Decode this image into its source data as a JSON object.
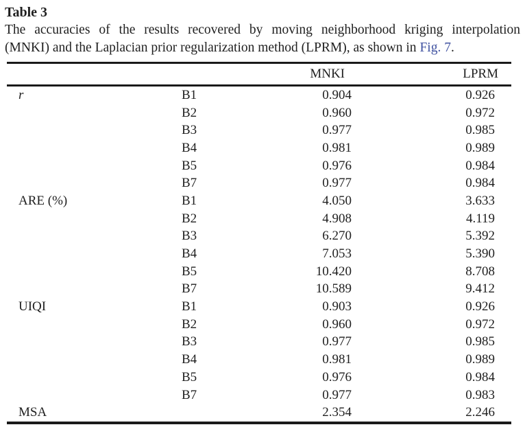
{
  "page": {
    "title": "Table 3",
    "caption": {
      "line1": "The accuracies of the results recovered by moving neighborhood kriging interpolation",
      "line2_before_link": "(MNKI) and the Laplacian prior regularization method (LPRM), as shown in ",
      "link_text": "Fig. 7",
      "line2_after_link": "."
    }
  },
  "colors": {
    "text": "#1f1f1f",
    "link": "#3f51a0",
    "rule": "#1a1a1a",
    "background": "#ffffff"
  },
  "table": {
    "headers": {
      "metric": "",
      "band": "",
      "mnki": "MNKI",
      "lprm": "LPRM"
    },
    "rows": [
      {
        "metric": "r",
        "italic": true,
        "band": "B1",
        "mnki": "0.904",
        "lprm": "0.926"
      },
      {
        "metric": "",
        "band": "B2",
        "mnki": "0.960",
        "lprm": "0.972"
      },
      {
        "metric": "",
        "band": "B3",
        "mnki": "0.977",
        "lprm": "0.985"
      },
      {
        "metric": "",
        "band": "B4",
        "mnki": "0.981",
        "lprm": "0.989"
      },
      {
        "metric": "",
        "band": "B5",
        "mnki": "0.976",
        "lprm": "0.984"
      },
      {
        "metric": "",
        "band": "B7",
        "mnki": "0.977",
        "lprm": "0.984"
      },
      {
        "metric": "ARE (%)",
        "band": "B1",
        "mnki": "4.050",
        "lprm": "3.633"
      },
      {
        "metric": "",
        "band": "B2",
        "mnki": "4.908",
        "lprm": "4.119"
      },
      {
        "metric": "",
        "band": "B3",
        "mnki": "6.270",
        "lprm": "5.392"
      },
      {
        "metric": "",
        "band": "B4",
        "mnki": "7.053",
        "lprm": "5.390"
      },
      {
        "metric": "",
        "band": "B5",
        "mnki": "10.420",
        "lprm": "8.708"
      },
      {
        "metric": "",
        "band": "B7",
        "mnki": "10.589",
        "lprm": "9.412"
      },
      {
        "metric": "UIQI",
        "band": "B1",
        "mnki": "0.903",
        "lprm": "0.926"
      },
      {
        "metric": "",
        "band": "B2",
        "mnki": "0.960",
        "lprm": "0.972"
      },
      {
        "metric": "",
        "band": "B3",
        "mnki": "0.977",
        "lprm": "0.985"
      },
      {
        "metric": "",
        "band": "B4",
        "mnki": "0.981",
        "lprm": "0.989"
      },
      {
        "metric": "",
        "band": "B5",
        "mnki": "0.976",
        "lprm": "0.984"
      },
      {
        "metric": "",
        "band": "B7",
        "mnki": "0.977",
        "lprm": "0.983"
      },
      {
        "metric": "MSA",
        "band": "",
        "mnki": "2.354",
        "lprm": "2.246"
      }
    ]
  }
}
